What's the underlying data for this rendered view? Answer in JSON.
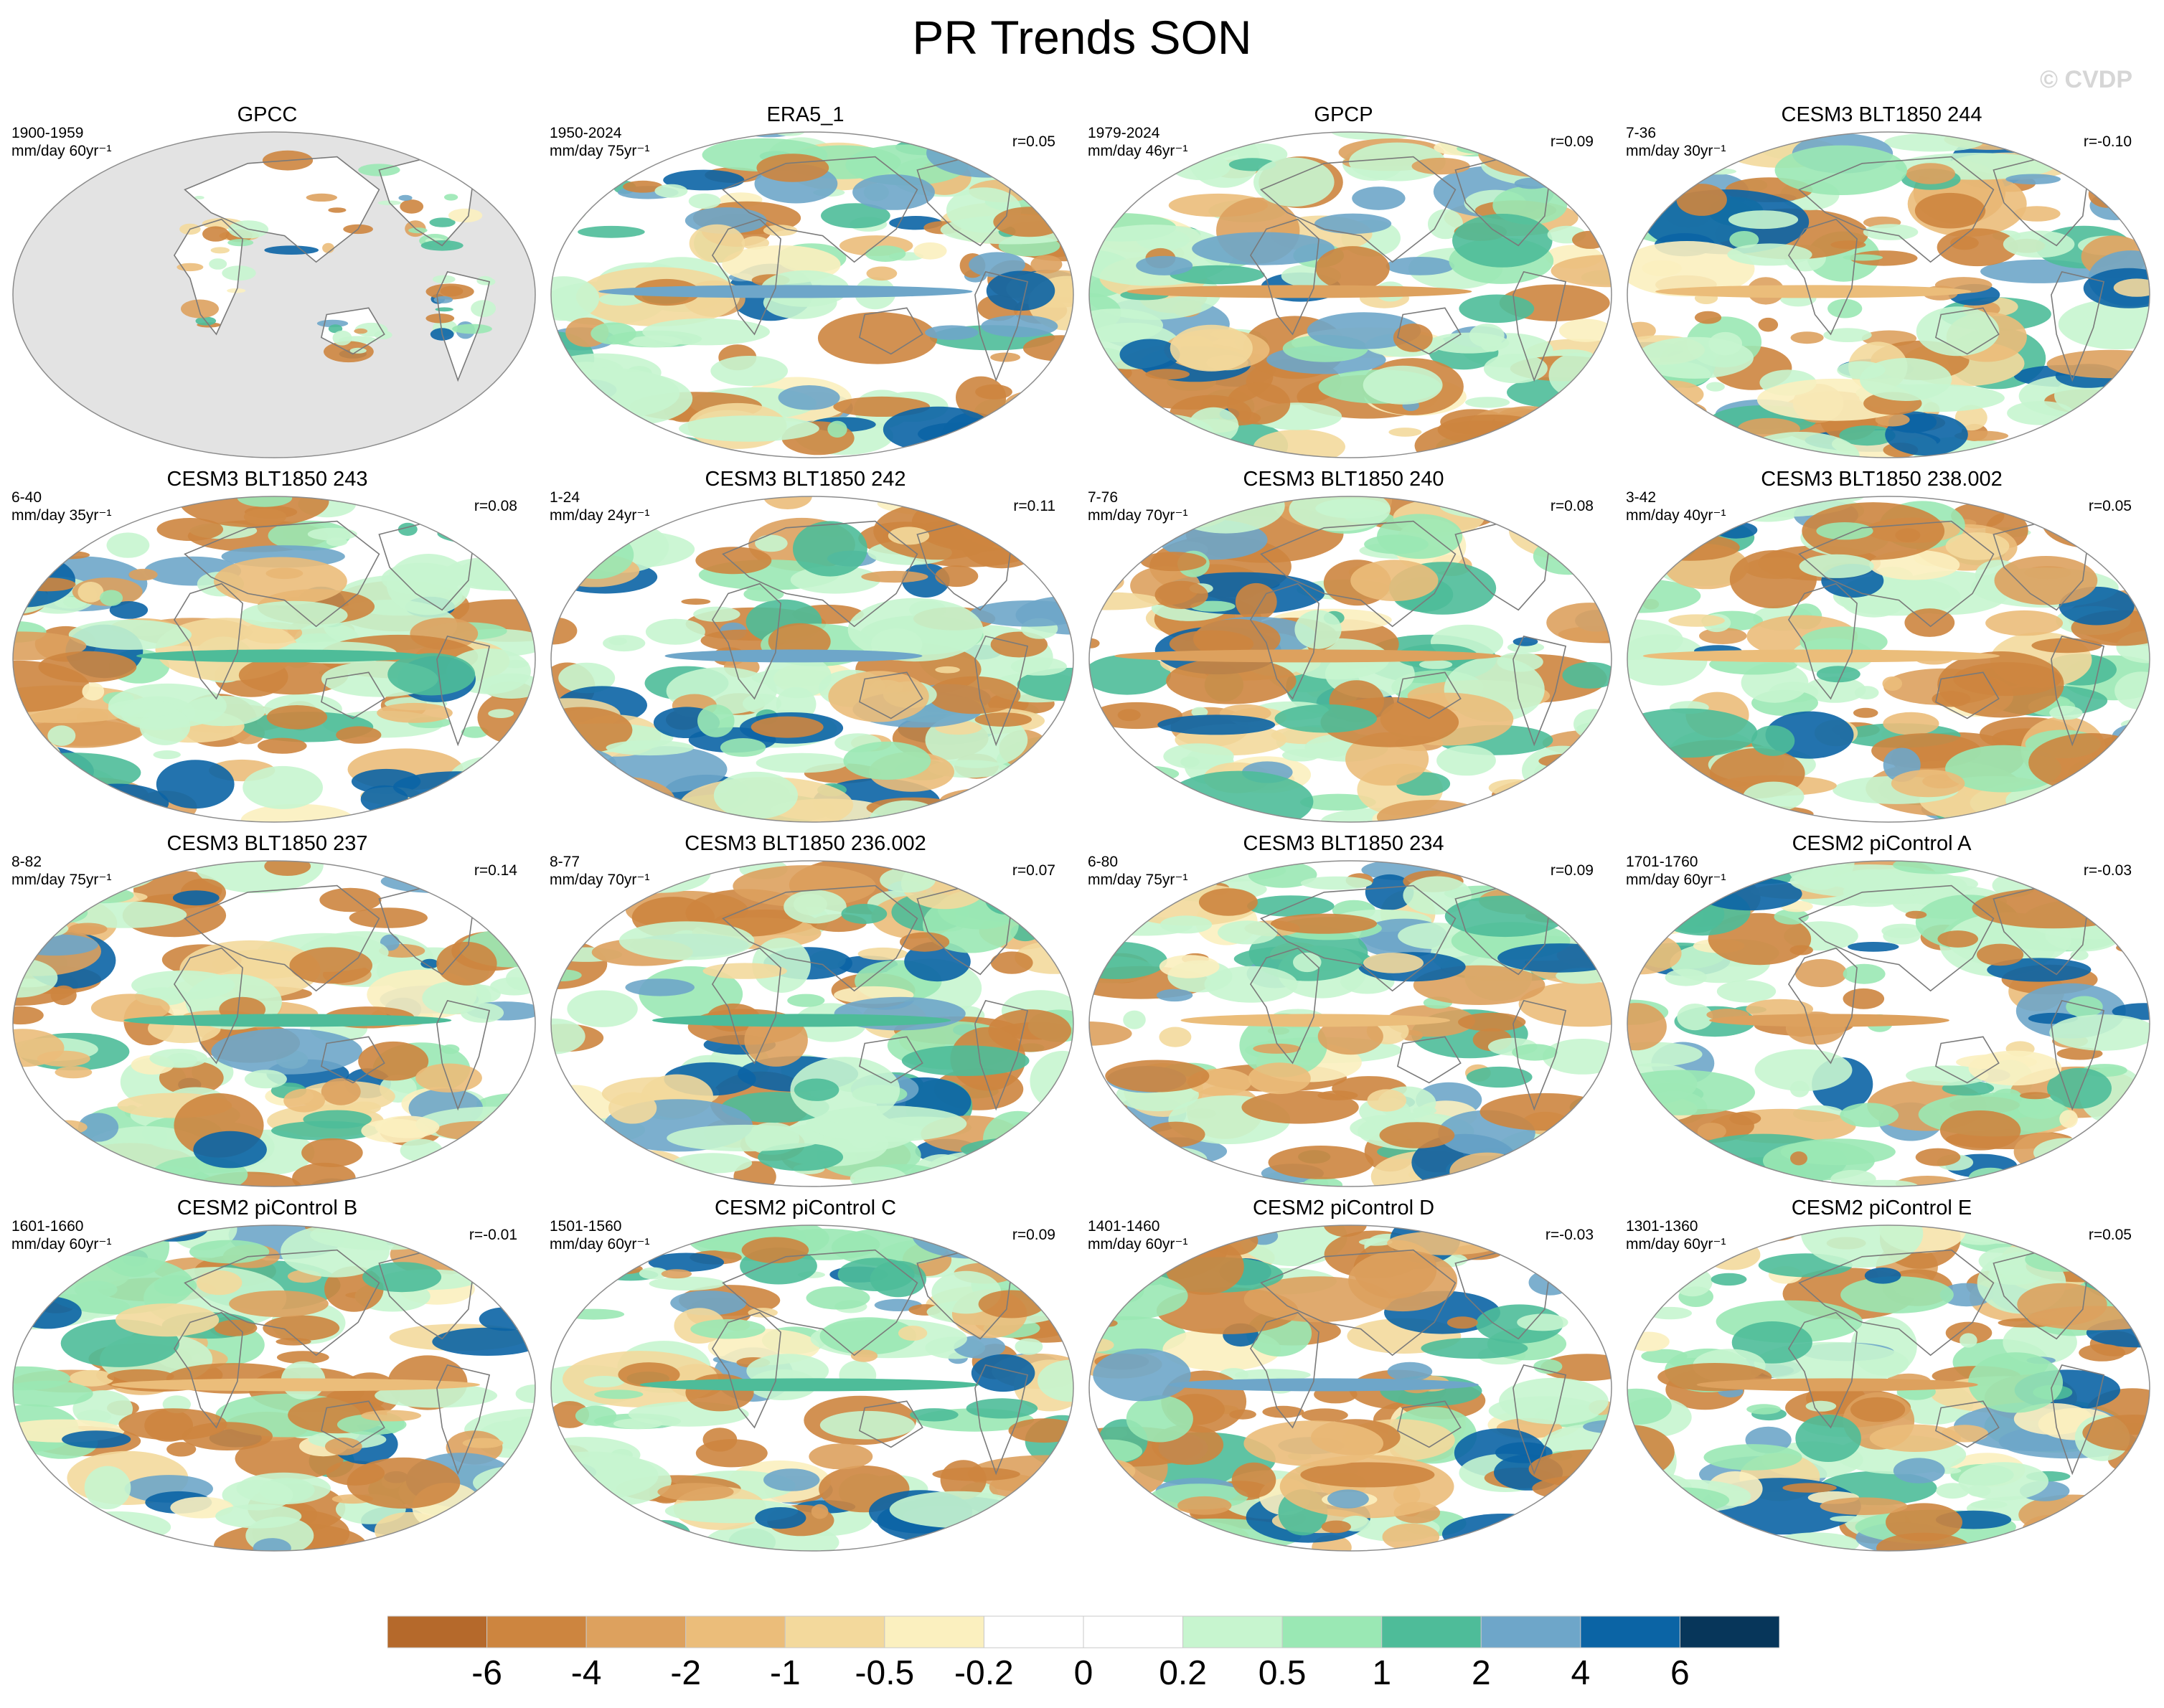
{
  "title": "PR Trends SON",
  "watermark": "© CVDP",
  "panels": [
    {
      "title": "GPCC",
      "period": "1900-1959",
      "units": "mm/day 60yr⁻¹",
      "r": "",
      "land_only": true
    },
    {
      "title": "ERA5_1",
      "period": "1950-2024",
      "units": "mm/day 75yr⁻¹",
      "r": "r=0.05",
      "land_only": false
    },
    {
      "title": "GPCP",
      "period": "1979-2024",
      "units": "mm/day 46yr⁻¹",
      "r": "r=0.09",
      "land_only": false
    },
    {
      "title": "CESM3 BLT1850 244",
      "period": "7-36",
      "units": "mm/day 30yr⁻¹",
      "r": "r=-0.10",
      "land_only": false
    },
    {
      "title": "CESM3 BLT1850 243",
      "period": "6-40",
      "units": "mm/day 35yr⁻¹",
      "r": "r=0.08",
      "land_only": false
    },
    {
      "title": "CESM3 BLT1850 242",
      "period": "1-24",
      "units": "mm/day 24yr⁻¹",
      "r": "r=0.11",
      "land_only": false
    },
    {
      "title": "CESM3 BLT1850 240",
      "period": "7-76",
      "units": "mm/day 70yr⁻¹",
      "r": "r=0.08",
      "land_only": false
    },
    {
      "title": "CESM3 BLT1850 238.002",
      "period": "3-42",
      "units": "mm/day 40yr⁻¹",
      "r": "r=0.05",
      "land_only": false
    },
    {
      "title": "CESM3 BLT1850 237",
      "period": "8-82",
      "units": "mm/day 75yr⁻¹",
      "r": "r=0.14",
      "land_only": false
    },
    {
      "title": "CESM3 BLT1850 236.002",
      "period": "8-77",
      "units": "mm/day 70yr⁻¹",
      "r": "r=0.07",
      "land_only": false
    },
    {
      "title": "CESM3 BLT1850 234",
      "period": "6-80",
      "units": "mm/day 75yr⁻¹",
      "r": "r=0.09",
      "land_only": false
    },
    {
      "title": "CESM2 piControl A",
      "period": "1701-1760",
      "units": "mm/day 60yr⁻¹",
      "r": "r=-0.03",
      "land_only": false
    },
    {
      "title": "CESM2 piControl B",
      "period": "1601-1660",
      "units": "mm/day 60yr⁻¹",
      "r": "r=-0.01",
      "land_only": false
    },
    {
      "title": "CESM2 piControl C",
      "period": "1501-1560",
      "units": "mm/day 60yr⁻¹",
      "r": "r=0.09",
      "land_only": false
    },
    {
      "title": "CESM2 piControl D",
      "period": "1401-1460",
      "units": "mm/day 60yr⁻¹",
      "r": "r=-0.03",
      "land_only": false
    },
    {
      "title": "CESM2 piControl E",
      "period": "1301-1360",
      "units": "mm/day 60yr⁻¹",
      "r": "r=0.05",
      "land_only": false
    }
  ],
  "colorbar": {
    "labels": [
      "-6",
      "-4",
      "-2",
      "-1",
      "-0.5",
      "-0.2",
      "0",
      "0.2",
      "0.5",
      "1",
      "2",
      "4",
      "6"
    ],
    "colors": [
      "#b5692b",
      "#cd853f",
      "#dda15e",
      "#ebbd7a",
      "#f3d99c",
      "#fbf0bf",
      "#ffffff",
      "#ffffff",
      "#c7f5cf",
      "#9ae8b4",
      "#4ebc99",
      "#6ea6c9",
      "#0b64a5",
      "#07365a"
    ]
  }
}
